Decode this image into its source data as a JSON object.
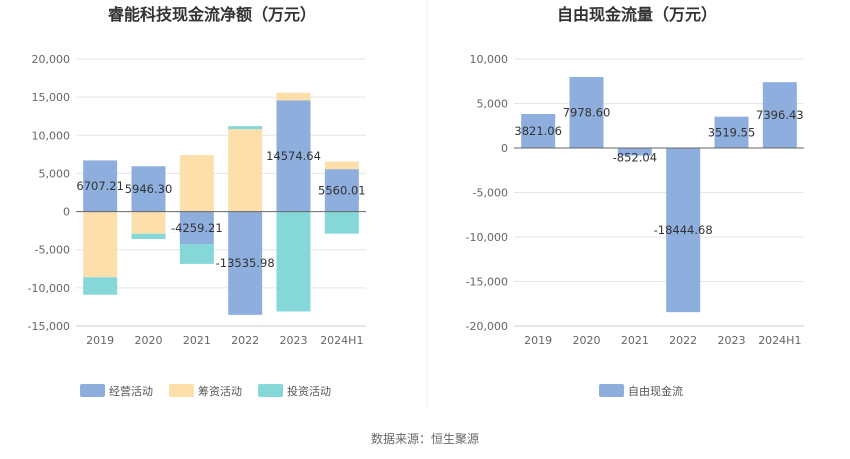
{
  "source": "数据来源：恒生聚源",
  "colors": {
    "operating": "#8eaede",
    "financing": "#fddfab",
    "investing": "#86d8d8",
    "fcf": "#8eaede",
    "grid": "#e6e6e6",
    "axis": "#999999"
  },
  "chart_data": [
    {
      "type": "bar",
      "stacked": true,
      "title": "睿能科技现金流净额（万元）",
      "categories": [
        "2019",
        "2020",
        "2021",
        "2022",
        "2023",
        "2024H1"
      ],
      "yticks": [
        "20,000",
        "15,000",
        "10,000",
        "5,000",
        "0",
        "-5,000",
        "-10,000",
        "-15,000"
      ],
      "ylim": [
        -15000,
        20000
      ],
      "grid": true,
      "legend_position": "bottom-center",
      "series": [
        {
          "name": "经营活动",
          "values": [
            6707.21,
            5946.3,
            -4259.21,
            -13535.98,
            14574.64,
            5560.01
          ]
        },
        {
          "name": "筹资活动",
          "values": [
            -8600,
            -2900,
            7400,
            10800,
            1000,
            1000
          ]
        },
        {
          "name": "投资活动",
          "values": [
            -2300,
            -700,
            -2600,
            400,
            -13100,
            -2900
          ]
        }
      ],
      "data_labels": [
        "6707.21",
        "5946.30",
        "-4259.21",
        "-13535.98",
        "14574.64",
        "5560.01"
      ]
    },
    {
      "type": "bar",
      "title": "自由现金流量（万元）",
      "categories": [
        "2019",
        "2020",
        "2021",
        "2022",
        "2023",
        "2024H1"
      ],
      "yticks": [
        "10,000",
        "5,000",
        "0",
        "-5,000",
        "-10,000",
        "-15,000",
        "-20,000"
      ],
      "ylim": [
        -20000,
        10000
      ],
      "grid": true,
      "legend_position": "bottom-center",
      "series": [
        {
          "name": "自由现金流",
          "values": [
            3821.06,
            7978.6,
            -852.04,
            -18444.68,
            3519.55,
            7396.43
          ]
        }
      ],
      "data_labels": [
        "3821.06",
        "7978.60",
        "-852.04",
        "-18444.68",
        "3519.55",
        "7396.43"
      ]
    }
  ]
}
